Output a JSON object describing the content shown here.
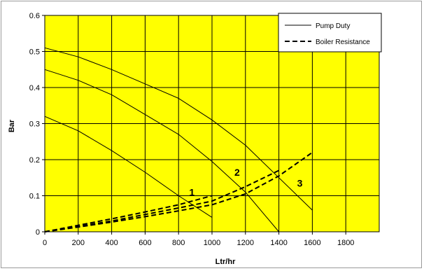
{
  "chart_data": {
    "type": "line",
    "xlabel": "Ltr/hr",
    "ylabel": "Bar",
    "xlim": [
      0,
      2000
    ],
    "ylim": [
      0,
      0.6
    ],
    "x_ticks": [
      0,
      200,
      400,
      600,
      800,
      1000,
      1200,
      1400,
      1600,
      1800
    ],
    "y_ticks": [
      0,
      0.1,
      0.2,
      0.3,
      0.4,
      0.5,
      0.6
    ],
    "x_tick_labels": [
      "0",
      "200",
      "400",
      "600",
      "800",
      "1000",
      "1200",
      "1400",
      "1600",
      "1800"
    ],
    "y_tick_labels": [
      "0",
      "0.1",
      "0.2",
      "0.3",
      "0.4",
      "0.5",
      "0.6"
    ],
    "grid": true,
    "plot_background": "#FFFF00",
    "legend_position": "top-right",
    "legend": [
      {
        "label": "Pump Duty",
        "style": "solid"
      },
      {
        "label": "Boiler Resistance",
        "style": "dashed"
      }
    ],
    "series": [
      {
        "group": "Pump Duty",
        "label": "1",
        "style": "solid",
        "x": [
          0,
          200,
          400,
          600,
          800,
          1000
        ],
        "y": [
          0.32,
          0.28,
          0.225,
          0.165,
          0.1,
          0.04
        ]
      },
      {
        "group": "Pump Duty",
        "label": "2",
        "style": "solid",
        "x": [
          0,
          200,
          400,
          600,
          800,
          1000,
          1200,
          1400
        ],
        "y": [
          0.45,
          0.42,
          0.38,
          0.325,
          0.27,
          0.195,
          0.11,
          0.0
        ]
      },
      {
        "group": "Pump Duty",
        "label": "3",
        "style": "solid",
        "x": [
          0,
          200,
          400,
          600,
          800,
          1000,
          1200,
          1400,
          1600
        ],
        "y": [
          0.51,
          0.485,
          0.45,
          0.41,
          0.37,
          0.31,
          0.24,
          0.15,
          0.06
        ]
      },
      {
        "group": "Boiler Resistance",
        "label": "1",
        "style": "dashed",
        "x": [
          0,
          200,
          400,
          600,
          800,
          1000
        ],
        "y": [
          0.0,
          0.018,
          0.036,
          0.055,
          0.075,
          0.1
        ]
      },
      {
        "group": "Boiler Resistance",
        "label": "2",
        "style": "dashed",
        "x": [
          0,
          200,
          400,
          600,
          800,
          1000,
          1200,
          1400
        ],
        "y": [
          0.0,
          0.015,
          0.03,
          0.048,
          0.066,
          0.085,
          0.125,
          0.17
        ]
      },
      {
        "group": "Boiler Resistance",
        "label": "3",
        "style": "dashed",
        "x": [
          0,
          200,
          400,
          600,
          800,
          1000,
          1200,
          1400,
          1600
        ],
        "y": [
          0.0,
          0.013,
          0.027,
          0.042,
          0.058,
          0.075,
          0.105,
          0.155,
          0.22
        ]
      }
    ],
    "curve_labels": [
      {
        "text": "1",
        "x": 880,
        "y": 0.1
      },
      {
        "text": "2",
        "x": 1150,
        "y": 0.155
      },
      {
        "text": "3",
        "x": 1525,
        "y": 0.125
      }
    ]
  }
}
